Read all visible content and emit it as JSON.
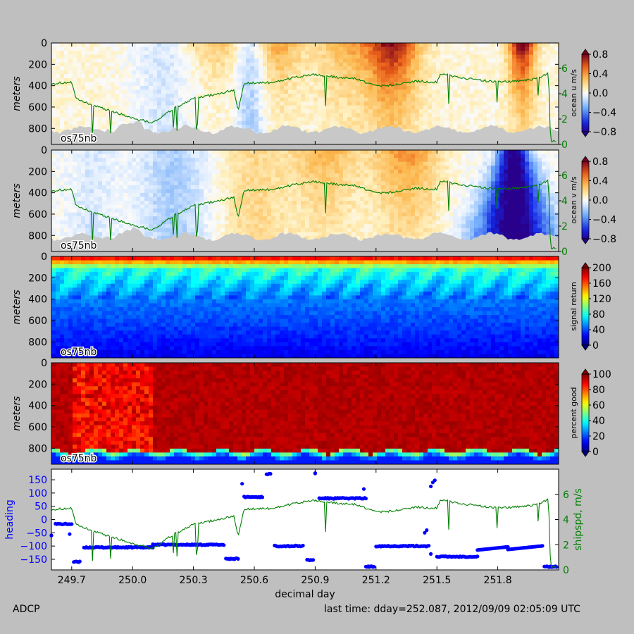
{
  "chart_data": [
    {
      "type": "heatmap",
      "ylabel": "meters",
      "yticks": [
        "0",
        "200",
        "400",
        "600",
        "800"
      ],
      "ylim": [
        0,
        950
      ],
      "xlim": [
        249.6,
        252.1
      ],
      "instrument_label": "os75nb",
      "colorbar": {
        "label": "ocean u m/s",
        "ticks": [
          "0.8",
          "0.4",
          "0.0",
          "−0.4",
          "−0.8"
        ],
        "range": [
          -0.8,
          0.8
        ],
        "colormap": "jet"
      },
      "right_axis": {
        "ticks": [
          "6",
          "4",
          "2",
          "0"
        ],
        "range": [
          0,
          8
        ],
        "color": "#007f00"
      },
      "overlay_series": "shipspd, m/s"
    },
    {
      "type": "heatmap",
      "ylabel": "meters",
      "yticks": [
        "0",
        "200",
        "400",
        "600",
        "800"
      ],
      "ylim": [
        0,
        950
      ],
      "xlim": [
        249.6,
        252.1
      ],
      "instrument_label": "os75nb",
      "colorbar": {
        "label": "ocean v m/s",
        "ticks": [
          "0.8",
          "0.4",
          "0.0",
          "−0.4",
          "−0.8"
        ],
        "range": [
          -0.8,
          0.8
        ],
        "colormap": "jet"
      },
      "right_axis": {
        "ticks": [
          "6",
          "4",
          "2",
          "0"
        ],
        "range": [
          0,
          8
        ],
        "color": "#007f00"
      },
      "overlay_series": "shipspd, m/s"
    },
    {
      "type": "heatmap",
      "ylabel": "meters",
      "yticks": [
        "0",
        "200",
        "400",
        "600",
        "800"
      ],
      "ylim": [
        0,
        950
      ],
      "xlim": [
        249.6,
        252.1
      ],
      "instrument_label": "os75nb",
      "colorbar": {
        "label": "signal return",
        "ticks": [
          "200",
          "160",
          "120",
          "80",
          "40",
          "0"
        ],
        "range": [
          0,
          200
        ],
        "colormap": "jet"
      }
    },
    {
      "type": "heatmap",
      "ylabel": "meters",
      "yticks": [
        "0",
        "200",
        "400",
        "600",
        "800"
      ],
      "ylim": [
        0,
        950
      ],
      "xlim": [
        249.6,
        252.1
      ],
      "instrument_label": "os75nb",
      "colorbar": {
        "label": "percent good",
        "ticks": [
          "100",
          "80",
          "60",
          "40",
          "20",
          "0"
        ],
        "range": [
          0,
          100
        ],
        "colormap": "jet"
      }
    },
    {
      "type": "scatter",
      "ylabel": "heading",
      "ylabel_color": "#0000ff",
      "yticks": [
        "150",
        "100",
        "50",
        "0",
        "−50",
        "−100",
        "−150"
      ],
      "ylim": [
        -190,
        190
      ],
      "right_ylabel": "shipspd, m/s",
      "right_color": "#007f00",
      "right_ticks": [
        "6",
        "4",
        "2",
        "0"
      ],
      "right_range": [
        0,
        8
      ],
      "xlabel": "decimal day",
      "xticks": [
        "249.7",
        "250.0",
        "250.3",
        "250.6",
        "250.9",
        "251.2",
        "251.5",
        "251.8"
      ],
      "xlim": [
        249.6,
        252.1
      ],
      "heading_segments": [
        {
          "x": [
            249.6,
            249.6
          ],
          "y": -58
        },
        {
          "x": [
            249.62,
            249.7
          ],
          "y": -17
        },
        {
          "x": [
            249.71,
            249.74
          ],
          "y": -160
        },
        {
          "x": [
            249.76,
            250.1
          ],
          "y": -105
        },
        {
          "x": [
            250.1,
            250.45
          ],
          "y": -95
        },
        {
          "x": [
            250.46,
            250.52
          ],
          "y": -148
        },
        {
          "x": [
            250.55,
            250.64
          ],
          "y": 85
        },
        {
          "x": [
            250.66,
            250.68
          ],
          "y": 172
        },
        {
          "x": [
            250.7,
            250.84
          ],
          "y": -100
        },
        {
          "x": [
            250.86,
            250.89
          ],
          "y": -153
        },
        {
          "x": [
            250.9,
            250.9
          ],
          "y": 175
        },
        {
          "x": [
            250.92,
            251.15
          ],
          "y": 80
        },
        {
          "x": [
            251.15,
            251.19
          ],
          "y": -178
        },
        {
          "x": [
            251.2,
            251.46
          ],
          "y": -100
        },
        {
          "x": [
            251.5,
            251.7
          ],
          "y": -140
        },
        {
          "x": [
            251.7,
            251.85
          ],
          "y": -115
        },
        {
          "x": [
            251.85,
            252.02
          ],
          "y": -125
        },
        {
          "x": [
            252.03,
            252.09
          ],
          "y": -178
        }
      ],
      "heading_isolated": [
        {
          "x": 249.69,
          "y": -55
        },
        {
          "x": 250.54,
          "y": 135
        },
        {
          "x": 251.14,
          "y": 115
        },
        {
          "x": 251.44,
          "y": -50
        },
        {
          "x": 251.45,
          "y": -40
        },
        {
          "x": 251.47,
          "y": 125
        },
        {
          "x": 251.48,
          "y": 140
        },
        {
          "x": 251.49,
          "y": 148
        },
        {
          "x": 251.47,
          "y": -130
        }
      ],
      "shipspd": {
        "x": [
          249.6,
          249.7,
          249.72,
          249.75,
          249.9,
          250.0,
          250.1,
          250.2,
          250.3,
          250.45,
          250.5,
          250.52,
          250.55,
          250.7,
          250.8,
          250.9,
          251.0,
          251.1,
          251.2,
          251.3,
          251.4,
          251.5,
          251.52,
          251.6,
          251.7,
          251.8,
          251.9,
          252.0,
          252.05,
          252.06,
          252.1
        ],
        "y": [
          4.8,
          4.9,
          3.6,
          3.4,
          2.6,
          2.1,
          1.7,
          2.8,
          3.6,
          4.1,
          4.3,
          2.6,
          4.8,
          4.9,
          5.3,
          5.5,
          5.3,
          5.2,
          4.6,
          4.7,
          5.0,
          4.9,
          5.6,
          5.3,
          5.1,
          4.9,
          5.0,
          5.2,
          5.6,
          0.3,
          0.2
        ]
      }
    }
  ],
  "footer": {
    "left": "ADCP",
    "right": "last time: dday=252.087,  2012/09/09 02:05:09 UTC"
  }
}
